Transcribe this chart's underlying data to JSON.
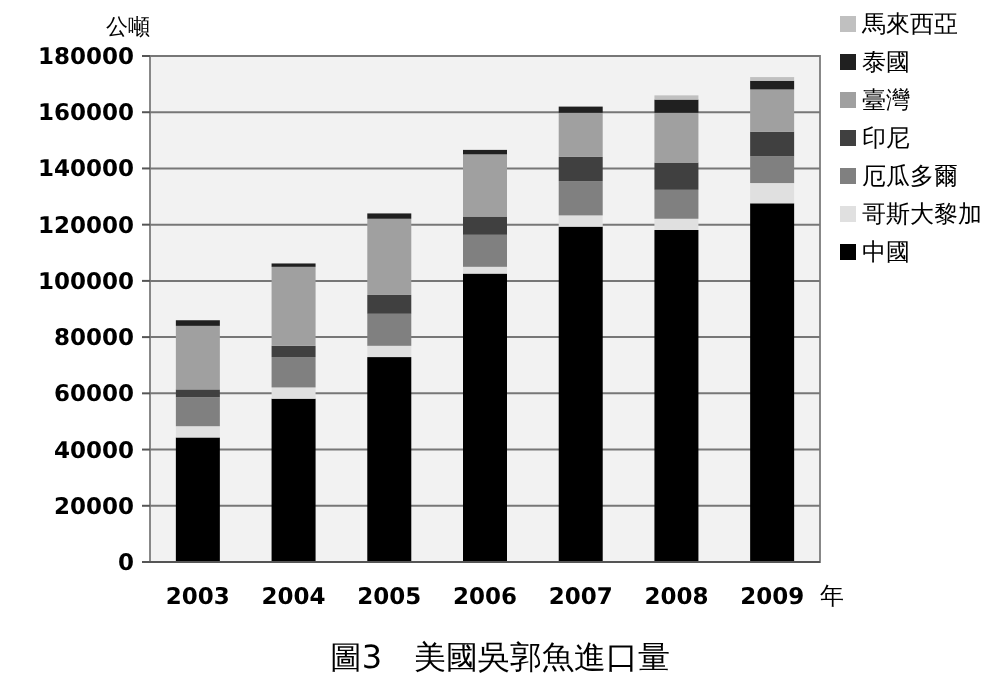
{
  "chart_data": {
    "type": "bar",
    "stacked": true,
    "title": "圖3　美國吳郭魚進口量",
    "ylabel": "公噸",
    "xlabel": "年",
    "categories": [
      "2003",
      "2004",
      "2005",
      "2006",
      "2007",
      "2008",
      "2009"
    ],
    "ylim": [
      0,
      180000
    ],
    "yticks": [
      0,
      20000,
      40000,
      60000,
      80000,
      100000,
      120000,
      140000,
      160000,
      180000
    ],
    "grid": "y",
    "legend": "right",
    "series": [
      {
        "name": "中國",
        "color": "#000000",
        "values": [
          44300,
          58100,
          72900,
          102600,
          119300,
          118100,
          127600
        ]
      },
      {
        "name": "哥斯大黎加",
        "color": "#e0e0e0",
        "values": [
          4000,
          4000,
          4000,
          2400,
          4000,
          4000,
          7200
        ]
      },
      {
        "name": "厄瓜多爾",
        "color": "#808080",
        "values": [
          10300,
          10800,
          11400,
          11400,
          12200,
          10300,
          9500
        ]
      },
      {
        "name": "印尼",
        "color": "#404040",
        "values": [
          2800,
          4000,
          6700,
          6500,
          8600,
          9700,
          8800
        ]
      },
      {
        "name": "臺灣",
        "color": "#a0a0a0",
        "values": [
          22600,
          28100,
          27100,
          22100,
          15700,
          17700,
          15000
        ]
      },
      {
        "name": "泰國",
        "color": "#202020",
        "values": [
          2000,
          1200,
          1900,
          1600,
          2200,
          4700,
          3100
        ]
      },
      {
        "name": "馬來西亞",
        "color": "#c0c0c0",
        "values": [
          null,
          null,
          null,
          null,
          null,
          1500,
          1300
        ]
      }
    ]
  }
}
